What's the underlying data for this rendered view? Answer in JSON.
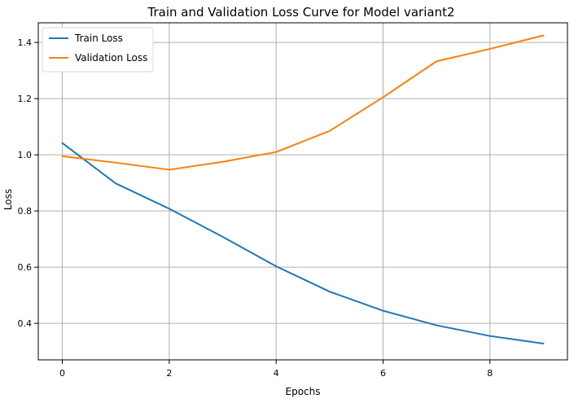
{
  "chart_data": {
    "type": "line",
    "title": "Train and Validation Loss Curve for Model variant2",
    "xlabel": "Epochs",
    "ylabel": "Loss",
    "xlim": [
      -0.45,
      9.45
    ],
    "ylim": [
      0.27,
      1.47
    ],
    "x_ticks": [
      0,
      2,
      4,
      6,
      8
    ],
    "y_ticks": [
      0.4,
      0.6,
      0.8,
      1.0,
      1.2,
      1.4
    ],
    "x_tick_labels": [
      "0",
      "2",
      "4",
      "6",
      "8"
    ],
    "y_tick_labels": [
      "0.4",
      "0.6",
      "0.8",
      "1.0",
      "1.2",
      "1.4"
    ],
    "grid": true,
    "legend_position": "top-left",
    "x": [
      0,
      1,
      2,
      3,
      4,
      5,
      6,
      7,
      8,
      9
    ],
    "series": [
      {
        "name": "Train Loss",
        "color": "#1f77b4",
        "values": [
          1.042,
          0.898,
          0.808,
          0.708,
          0.603,
          0.513,
          0.445,
          0.393,
          0.355,
          0.328
        ]
      },
      {
        "name": "Validation Loss",
        "color": "#ff7f0e",
        "values": [
          0.995,
          0.972,
          0.947,
          0.975,
          1.01,
          1.085,
          1.205,
          1.333,
          1.377,
          1.425
        ]
      }
    ]
  }
}
